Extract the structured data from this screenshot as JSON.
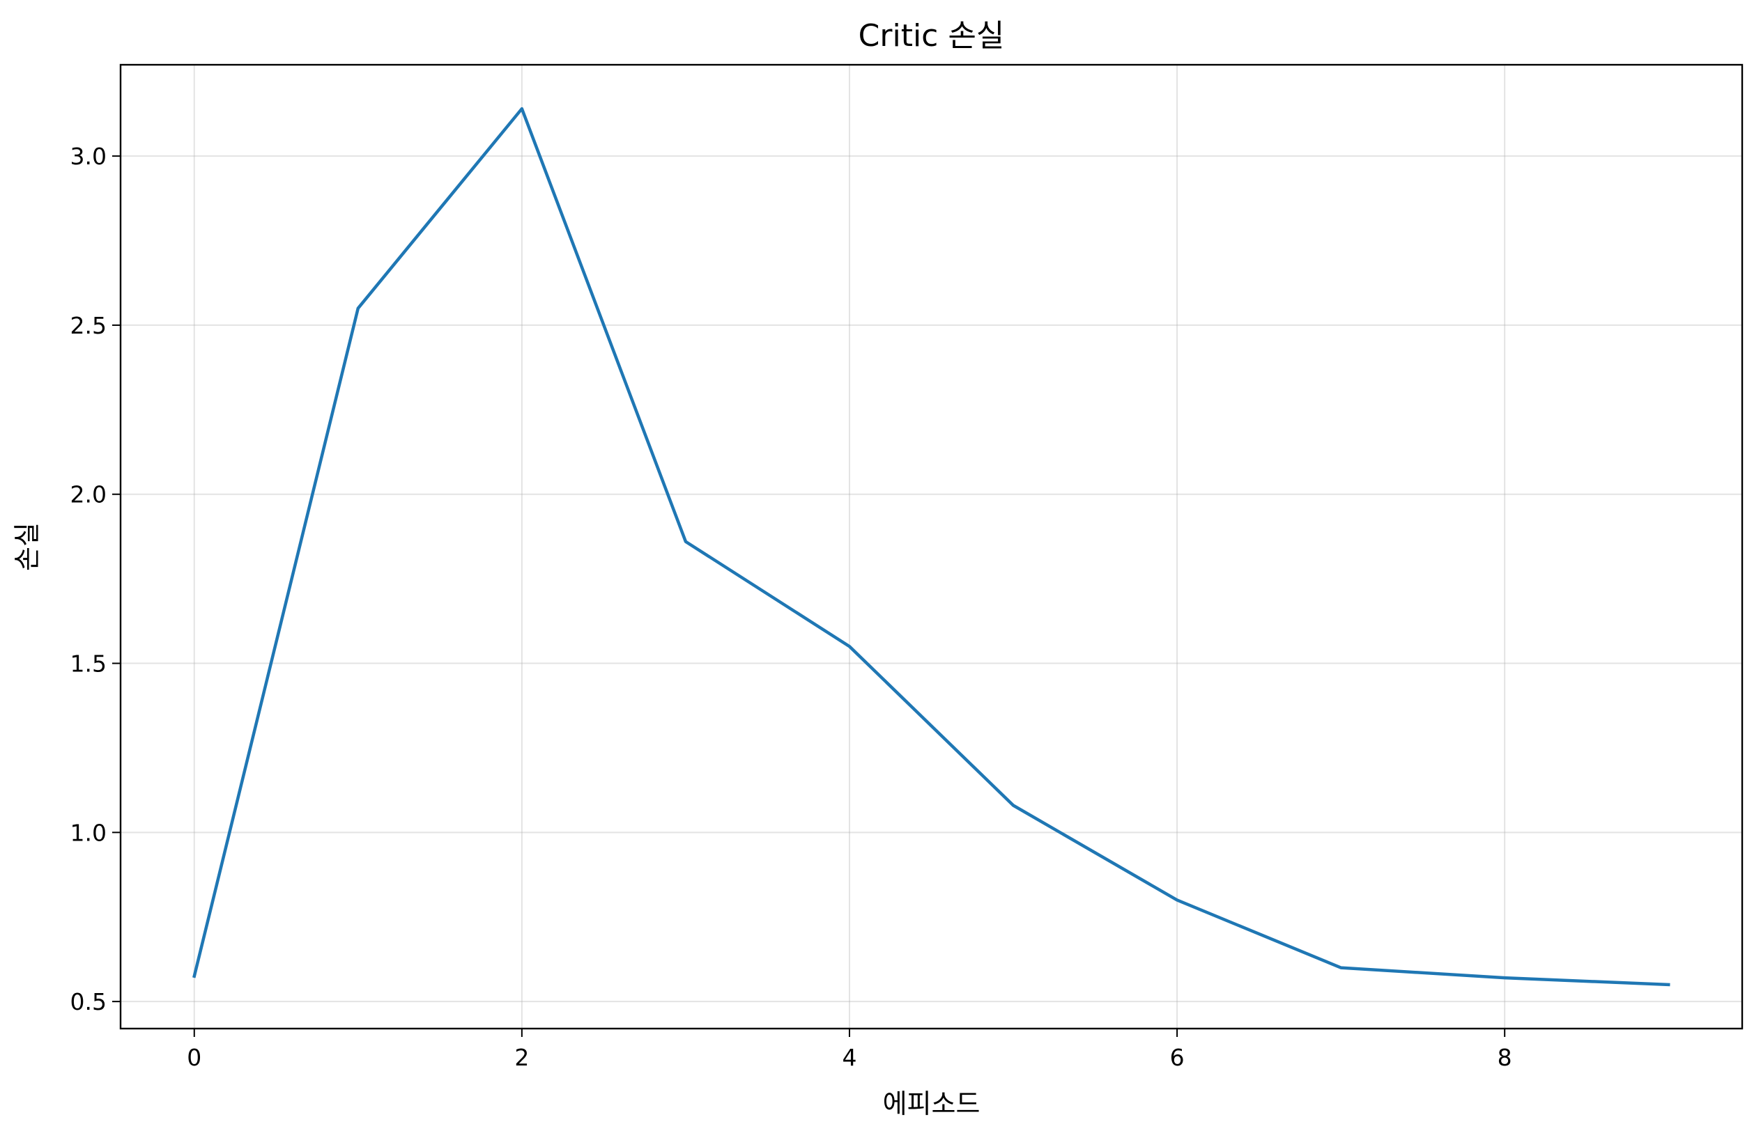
{
  "chart_data": {
    "type": "line",
    "title": "Critic 손실",
    "xlabel": "에피소드",
    "ylabel": "손실",
    "x": [
      0,
      1,
      2,
      3,
      4,
      5,
      6,
      7,
      8,
      9
    ],
    "series": [
      {
        "values": [
          0.575,
          2.55,
          3.14,
          1.86,
          1.55,
          1.08,
          0.8,
          0.6,
          0.57,
          0.55
        ],
        "color": "#1f77b4"
      }
    ],
    "xlim": [
      -0.45,
      9.45
    ],
    "ylim": [
      0.42,
      3.27
    ],
    "xticks": [
      0,
      2,
      4,
      6,
      8
    ],
    "xtick_labels": [
      "0",
      "2",
      "4",
      "6",
      "8"
    ],
    "yticks": [
      0.5,
      1.0,
      1.5,
      2.0,
      2.5,
      3.0
    ],
    "ytick_labels": [
      "0.5",
      "1.0",
      "1.5",
      "2.0",
      "2.5",
      "3.0"
    ],
    "grid": true,
    "legend": "none"
  }
}
